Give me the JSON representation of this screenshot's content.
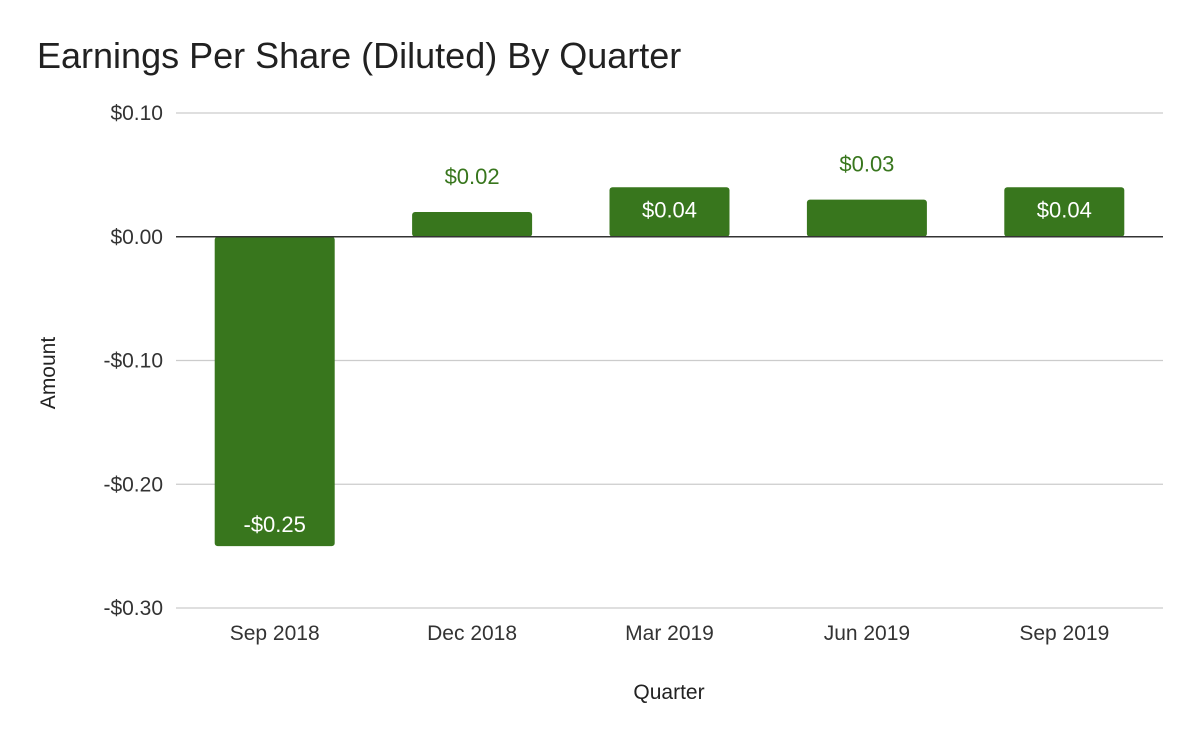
{
  "chart_data": {
    "type": "bar",
    "title": "Earnings Per Share (Diluted) By Quarter",
    "xlabel": "Quarter",
    "ylabel": "Amount",
    "categories": [
      "Sep 2018",
      "Dec 2018",
      "Mar 2019",
      "Jun 2019",
      "Sep 2019"
    ],
    "values": [
      -0.25,
      0.02,
      0.04,
      0.03,
      0.04
    ],
    "data_labels": [
      "-$0.25",
      "$0.02",
      "$0.04",
      "$0.03",
      "$0.04"
    ],
    "ylim": [
      -0.3,
      0.1
    ],
    "y_ticks": [
      0.1,
      0.0,
      -0.1,
      -0.2,
      -0.3
    ],
    "y_tick_labels": [
      "$0.10",
      "$0.00",
      "-$0.10",
      "-$0.20",
      "-$0.30"
    ],
    "grid": true,
    "legend": "none",
    "colors": {
      "bar": "#38761d",
      "label_inside": "#ffffff",
      "label_outside": "#38761d",
      "grid": "#cccccc",
      "zero_line": "#333333"
    }
  }
}
